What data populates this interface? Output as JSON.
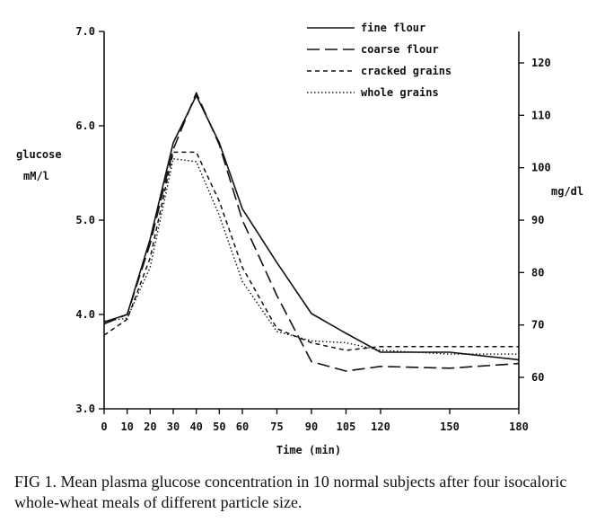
{
  "chart_data": {
    "type": "line",
    "title": "",
    "xlabel": "Time (min)",
    "ylabel_left_line1": "glucose",
    "ylabel_left_line2": "mM/l",
    "ylabel_right": "mg/dl",
    "x": [
      0,
      10,
      20,
      30,
      40,
      50,
      60,
      75,
      90,
      105,
      120,
      150,
      180
    ],
    "x_tick_labels": [
      "0",
      "10",
      "20",
      "30",
      "40",
      "50",
      "60",
      "75",
      "90",
      "105",
      "120",
      "150",
      "180"
    ],
    "ylim_left": [
      3.0,
      7.0
    ],
    "y_ticks_left": [
      3.0,
      4.0,
      5.0,
      6.0,
      7.0
    ],
    "y_tick_labels_left": [
      "3.0",
      "4.0",
      "5.0",
      "6.0",
      "7.0"
    ],
    "y_ticks_right": [
      60,
      70,
      80,
      90,
      100,
      110,
      120
    ],
    "y_tick_labels_right": [
      "60",
      "70",
      "80",
      "90",
      "100",
      "110",
      "120"
    ],
    "grid": false,
    "legend_position": "top-right",
    "series": [
      {
        "name": "fine flour",
        "dash": "solid",
        "values": [
          3.92,
          4.0,
          4.8,
          5.82,
          6.32,
          5.82,
          5.12,
          4.55,
          4.01,
          3.8,
          3.6,
          3.6,
          3.52
        ]
      },
      {
        "name": "coarse flour",
        "dash": "long",
        "values": [
          3.9,
          4.0,
          4.75,
          5.75,
          6.35,
          5.8,
          5.0,
          4.2,
          3.5,
          3.4,
          3.45,
          3.43,
          3.48
        ]
      },
      {
        "name": "cracked grains",
        "dash": "short",
        "values": [
          3.78,
          3.95,
          4.6,
          5.72,
          5.72,
          5.2,
          4.5,
          3.85,
          3.7,
          3.62,
          3.66,
          3.66,
          3.66
        ]
      },
      {
        "name": "whole grains",
        "dash": "dotted",
        "values": [
          3.93,
          3.96,
          4.5,
          5.65,
          5.62,
          5.05,
          4.35,
          3.82,
          3.72,
          3.7,
          3.62,
          3.58,
          3.58
        ]
      }
    ]
  },
  "caption": "FIG 1. Mean plasma glucose concentration in 10 normal subjects after four isocaloric whole-wheat meals of different particle size."
}
